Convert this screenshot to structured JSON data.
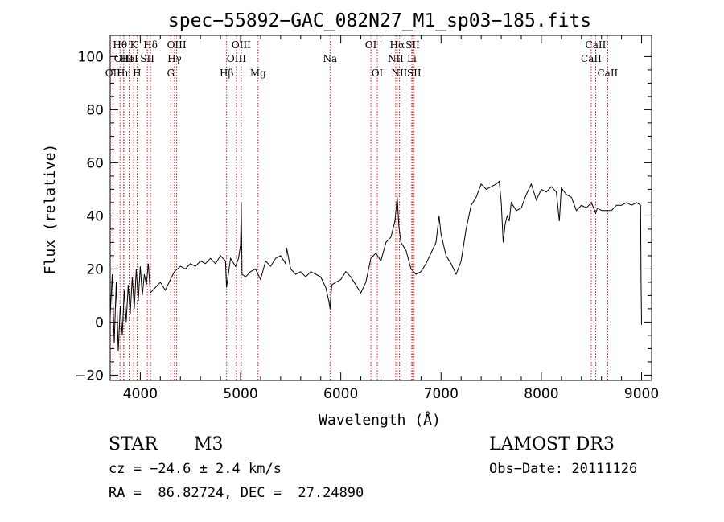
{
  "chart_data": {
    "type": "line",
    "title": "spec−55892−GAC_082N27_M1_sp03−185.fits",
    "xlabel": "Wavelength (Å)",
    "ylabel": "Flux (relative)",
    "xlim": [
      3700,
      9100
    ],
    "ylim": [
      -22,
      108
    ],
    "xticks": [
      4000,
      5000,
      6000,
      7000,
      8000,
      9000
    ],
    "yticks": [
      -20,
      0,
      20,
      40,
      60,
      80,
      100
    ],
    "ytick_labels": [
      "−20",
      "0",
      "20",
      "40",
      "60",
      "80",
      "100"
    ],
    "line_color": "#000000",
    "marker_color": "#cc0000",
    "series": [
      {
        "name": "spectrum",
        "x": [
          3700,
          3720,
          3740,
          3760,
          3780,
          3800,
          3820,
          3840,
          3860,
          3880,
          3900,
          3920,
          3940,
          3960,
          3980,
          4000,
          4020,
          4040,
          4060,
          4080,
          4100,
          4150,
          4200,
          4250,
          4300,
          4340,
          4400,
          4450,
          4500,
          4550,
          4600,
          4650,
          4700,
          4750,
          4800,
          4850,
          4860,
          4900,
          4950,
          4980,
          5000,
          5007,
          5015,
          5050,
          5100,
          5150,
          5200,
          5250,
          5300,
          5350,
          5400,
          5450,
          5460,
          5500,
          5550,
          5600,
          5650,
          5700,
          5750,
          5800,
          5850,
          5880,
          5893,
          5900,
          5910,
          5950,
          6000,
          6050,
          6100,
          6150,
          6200,
          6250,
          6300,
          6350,
          6400,
          6450,
          6500,
          6540,
          6563,
          6580,
          6600,
          6650,
          6700,
          6750,
          6800,
          6850,
          6900,
          6950,
          6980,
          7000,
          7050,
          7100,
          7150,
          7200,
          7250,
          7300,
          7350,
          7400,
          7450,
          7500,
          7550,
          7580,
          7600,
          7620,
          7640,
          7660,
          7680,
          7700,
          7750,
          7800,
          7850,
          7900,
          7950,
          8000,
          8050,
          8100,
          8150,
          8180,
          8200,
          8210,
          8230,
          8250,
          8300,
          8350,
          8400,
          8450,
          8500,
          8542,
          8560,
          8600,
          8662,
          8700,
          8750,
          8800,
          8850,
          8900,
          8950,
          8990,
          8995,
          9000
        ],
        "y": [
          2,
          18,
          -8,
          15,
          -11,
          6,
          -5,
          12,
          0,
          14,
          3,
          17,
          5,
          20,
          8,
          21,
          10,
          18,
          14,
          22,
          11,
          13,
          15,
          12,
          16,
          19,
          21,
          20,
          22,
          21,
          23,
          22,
          24,
          22,
          25,
          23,
          13,
          24,
          21,
          24,
          29,
          45,
          18,
          17,
          19,
          20,
          16,
          23,
          21,
          24,
          25,
          22,
          28,
          20,
          18,
          19,
          17,
          19,
          18,
          17,
          13,
          8,
          5,
          9,
          14,
          15,
          16,
          19,
          17,
          14,
          11,
          15,
          24,
          26,
          23,
          30,
          32,
          38,
          47,
          36,
          30,
          27,
          20,
          18,
          19,
          22,
          26,
          30,
          40,
          33,
          25,
          22,
          18,
          23,
          35,
          44,
          47,
          52,
          50,
          51,
          52,
          53,
          45,
          30,
          37,
          40,
          38,
          45,
          42,
          43,
          48,
          52,
          46,
          50,
          49,
          51,
          49,
          38,
          51,
          50,
          49,
          48,
          47,
          42,
          44,
          43,
          45,
          41,
          43,
          42,
          42,
          42,
          44,
          44,
          45,
          44,
          45,
          44,
          15,
          -1
        ]
      }
    ],
    "lines": [
      {
        "label": "OII",
        "wl": 3727,
        "row": 2
      },
      {
        "label": "Hθ",
        "wl": 3798,
        "row": 0
      },
      {
        "label": "OIII",
        "wl": 3835,
        "row": 1
      },
      {
        "label": "Hη",
        "wl": 3835,
        "row": 2
      },
      {
        "label": "HeI",
        "wl": 3889,
        "row": 1
      },
      {
        "label": "K",
        "wl": 3934,
        "row": 0
      },
      {
        "label": "H",
        "wl": 3968,
        "row": 2
      },
      {
        "label": "SII",
        "wl": 4070,
        "row": 1
      },
      {
        "label": "Hδ",
        "wl": 4102,
        "row": 0
      },
      {
        "label": "OIII",
        "wl": 4363,
        "row": 0
      },
      {
        "label": "Hγ",
        "wl": 4341,
        "row": 1
      },
      {
        "label": "G",
        "wl": 4304,
        "row": 2
      },
      {
        "label": "Hβ",
        "wl": 4861,
        "row": 2
      },
      {
        "label": "OIII",
        "wl": 4959,
        "row": 1
      },
      {
        "label": "OIII",
        "wl": 5007,
        "row": 0
      },
      {
        "label": "Mg",
        "wl": 5175,
        "row": 2
      },
      {
        "label": "Na",
        "wl": 5893,
        "row": 1
      },
      {
        "label": "OI",
        "wl": 6300,
        "row": 0
      },
      {
        "label": "OI",
        "wl": 6364,
        "row": 2
      },
      {
        "label": "Hα",
        "wl": 6563,
        "row": 0
      },
      {
        "label": "NII",
        "wl": 6548,
        "row": 1
      },
      {
        "label": "NII",
        "wl": 6584,
        "row": 2
      },
      {
        "label": "Li",
        "wl": 6708,
        "row": 1
      },
      {
        "label": "SII",
        "wl": 6717,
        "row": 0
      },
      {
        "label": "SII",
        "wl": 6731,
        "row": 2
      },
      {
        "label": "CaII",
        "wl": 8498,
        "row": 1
      },
      {
        "label": "CaII",
        "wl": 8542,
        "row": 0
      },
      {
        "label": "CaII",
        "wl": 8662,
        "row": 2
      }
    ]
  },
  "info": {
    "object_class": "STAR",
    "subclass": "M3",
    "cz": "cz = −24.6 ± 2.4 km/s",
    "radec": "RA =  86.82724, DEC =  27.24890",
    "survey": "LAMOST DR3",
    "obs_date": "Obs−Date: 20111126"
  }
}
